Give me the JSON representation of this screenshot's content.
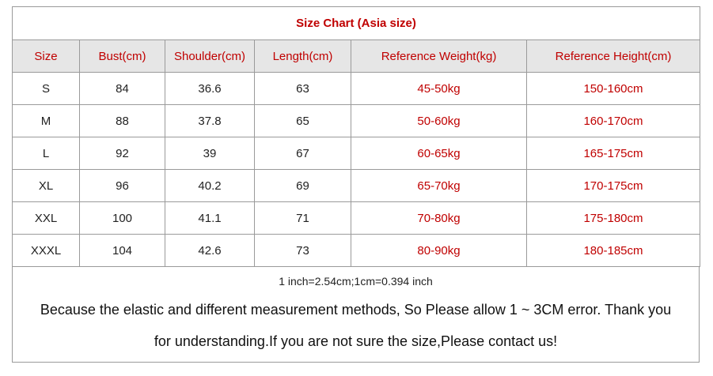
{
  "title": "Size Chart (Asia size)",
  "table": {
    "header": [
      "Size",
      "Bust(cm)",
      "Shoulder(cm)",
      "Length(cm)",
      "Reference Weight(kg)",
      "Reference Height(cm)"
    ],
    "rows": [
      [
        "S",
        84,
        36.6,
        63,
        "45-50kg",
        "150-160cm"
      ],
      [
        "M",
        88,
        37.8,
        65,
        "50-60kg",
        "160-170cm"
      ],
      [
        "L",
        92,
        39,
        67,
        "60-65kg",
        "165-175cm"
      ],
      [
        "XL",
        96,
        40.2,
        69,
        "65-70kg",
        "170-175cm"
      ],
      [
        "XXL",
        100,
        41.1,
        71,
        "70-80kg",
        "175-180cm"
      ],
      [
        "XXXL",
        104,
        42.6,
        73,
        "80-90kg",
        "180-185cm"
      ]
    ]
  },
  "conversion": "1 inch=2.54cm;1cm=0.394 inch",
  "note": [
    "Because the elastic and different measurement methods, So Please allow 1 ~ 3CM error. Thank you",
    "for understanding.If you are not sure the size,Please contact us!"
  ]
}
